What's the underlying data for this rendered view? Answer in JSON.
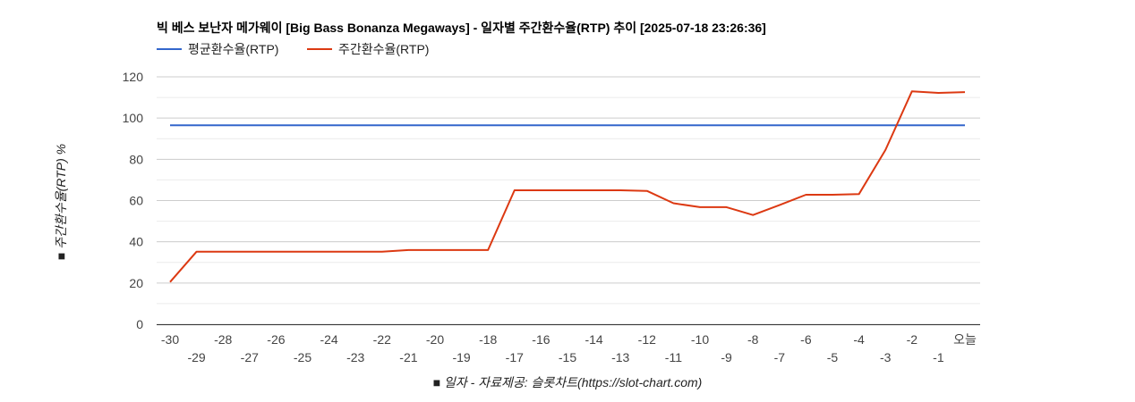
{
  "chart_data": {
    "type": "line",
    "title": "빅 베스 보난자 메가웨이 [Big Bass Bonanza Megaways] - 일자별 주간환수율(RTP) 추이 [2025-07-18 23:26:36]",
    "xlabel": "■ 일자 - 자료제공: 슬롯차트(https://slot-chart.com)",
    "ylabel": "■ 주간환수율(RTP) %",
    "ylim": [
      0,
      120
    ],
    "yticks": [
      "0",
      "20",
      "40",
      "60",
      "80",
      "100",
      "120"
    ],
    "legend_position": "top-left",
    "grid": true,
    "categories": [
      "-30",
      "-29",
      "-28",
      "-27",
      "-26",
      "-25",
      "-24",
      "-23",
      "-22",
      "-21",
      "-20",
      "-19",
      "-18",
      "-17",
      "-16",
      "-15",
      "-14",
      "-13",
      "-12",
      "-11",
      "-10",
      "-9",
      "-8",
      "-7",
      "-6",
      "-5",
      "-4",
      "-3",
      "-2",
      "-1",
      "오늘"
    ],
    "series": [
      {
        "name": "평균환수율(RTP)",
        "color": "#3366cc",
        "values": [
          96.5,
          96.5,
          96.5,
          96.5,
          96.5,
          96.5,
          96.5,
          96.5,
          96.5,
          96.5,
          96.5,
          96.5,
          96.5,
          96.5,
          96.5,
          96.5,
          96.5,
          96.5,
          96.5,
          96.5,
          96.5,
          96.5,
          96.5,
          96.5,
          96.5,
          96.5,
          96.5,
          96.5,
          96.5,
          96.5,
          96.5
        ]
      },
      {
        "name": "주간환수율(RTP)",
        "color": "#dc3912",
        "values": [
          20.5,
          35.2,
          35.2,
          35.2,
          35.2,
          35.2,
          35.2,
          35.2,
          35.2,
          36.0,
          36.0,
          36.0,
          36.0,
          65.0,
          65.0,
          65.0,
          65.0,
          65.0,
          64.7,
          58.7,
          56.8,
          56.8,
          53.0,
          57.8,
          62.8,
          62.8,
          63.1,
          84.5,
          113.0,
          112.2,
          112.6
        ]
      }
    ]
  }
}
